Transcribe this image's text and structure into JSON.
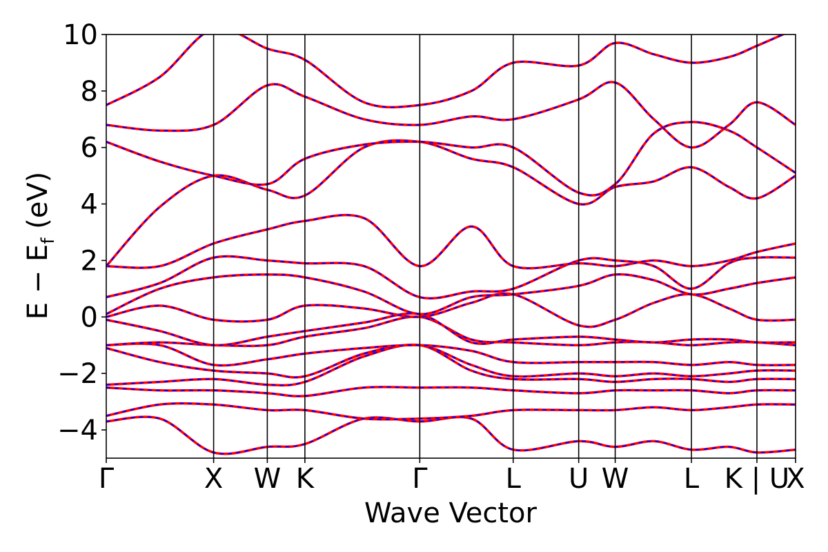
{
  "chart_data": {
    "type": "line",
    "title": "",
    "xlabel": "Wave Vector",
    "ylabel_main": "E − E",
    "ylabel_sub": "f",
    "ylabel_unit": " (eV)",
    "ylim": [
      -5,
      10
    ],
    "yticks": [
      -4,
      -2,
      0,
      2,
      4,
      6,
      8,
      10
    ],
    "ytick_labels": [
      "−4",
      "−2",
      "0",
      "2",
      "4",
      "6",
      "8",
      "10"
    ],
    "xlim": [
      0,
      6.42
    ],
    "kpoints": [
      {
        "label": "Γ",
        "x": 0.0
      },
      {
        "label": "X",
        "x": 1.0
      },
      {
        "label": "W",
        "x": 1.5
      },
      {
        "label": "K",
        "x": 1.85
      },
      {
        "label": "Γ",
        "x": 2.92
      },
      {
        "label": "L",
        "x": 3.79
      },
      {
        "label": "U",
        "x": 4.4
      },
      {
        "label": "W",
        "x": 4.74
      },
      {
        "label": "L",
        "x": 5.45
      },
      {
        "label": "K | U",
        "x": 6.06
      },
      {
        "label": "X",
        "x": 6.42
      }
    ],
    "grid": false,
    "legend": "none",
    "colors": {
      "series_a": "#ff0000",
      "series_b": "#0000ff"
    },
    "line_styles": {
      "series_a": "solid",
      "series_b": "dashed"
    },
    "bands": [
      {
        "x": [
          0,
          0.5,
          1.0,
          1.5,
          1.85,
          2.4,
          2.92,
          3.4,
          3.79,
          4.4,
          4.74,
          5.1,
          5.45,
          5.8,
          6.06,
          6.42
        ],
        "y": [
          -3.7,
          -3.6,
          -4.8,
          -4.6,
          -4.5,
          -3.6,
          -3.7,
          -3.6,
          -4.7,
          -4.4,
          -4.6,
          -4.4,
          -4.7,
          -4.6,
          -4.8,
          -4.7
        ]
      },
      {
        "x": [
          0,
          0.5,
          1.0,
          1.5,
          1.85,
          2.4,
          2.92,
          3.4,
          3.79,
          4.4,
          4.74,
          5.1,
          5.45,
          5.8,
          6.06,
          6.42
        ],
        "y": [
          -3.5,
          -3.1,
          -3.1,
          -3.3,
          -3.3,
          -3.6,
          -3.6,
          -3.5,
          -3.3,
          -3.3,
          -3.3,
          -3.2,
          -3.3,
          -3.2,
          -3.1,
          -3.1
        ]
      },
      {
        "x": [
          0,
          0.5,
          1.0,
          1.5,
          1.85,
          2.4,
          2.92,
          3.4,
          3.79,
          4.4,
          4.74,
          5.1,
          5.45,
          5.8,
          6.06,
          6.42
        ],
        "y": [
          -2.5,
          -2.6,
          -2.6,
          -2.7,
          -2.8,
          -2.5,
          -2.5,
          -2.5,
          -2.6,
          -2.7,
          -2.6,
          -2.6,
          -2.6,
          -2.7,
          -2.6,
          -2.6
        ]
      },
      {
        "x": [
          0,
          0.5,
          1.0,
          1.5,
          1.85,
          2.4,
          2.92,
          3.4,
          3.79,
          4.4,
          4.74,
          5.1,
          5.45,
          5.8,
          6.06,
          6.42
        ],
        "y": [
          -2.4,
          -2.3,
          -2.2,
          -2.4,
          -2.3,
          -1.4,
          -1.0,
          -1.9,
          -2.2,
          -2.2,
          -2.3,
          -2.2,
          -2.2,
          -2.3,
          -2.2,
          -2.2
        ]
      },
      {
        "x": [
          0,
          0.5,
          1.0,
          1.5,
          1.85,
          2.4,
          2.92,
          3.4,
          3.79,
          4.4,
          4.74,
          5.1,
          5.45,
          5.8,
          6.06,
          6.42
        ],
        "y": [
          -1.1,
          -1.6,
          -1.9,
          -2.0,
          -2.1,
          -1.3,
          -1.0,
          -1.7,
          -2.1,
          -2.0,
          -2.1,
          -2.0,
          -2.1,
          -2.0,
          -1.9,
          -1.9
        ]
      },
      {
        "x": [
          0,
          0.5,
          1.0,
          1.5,
          1.85,
          2.4,
          2.92,
          3.4,
          3.79,
          4.4,
          4.74,
          5.1,
          5.45,
          5.8,
          6.06,
          6.42
        ],
        "y": [
          -1.0,
          -1.0,
          -1.7,
          -1.5,
          -1.3,
          -1.1,
          -1.0,
          -1.2,
          -1.6,
          -1.6,
          -1.6,
          -1.6,
          -1.7,
          -1.6,
          -1.7,
          -1.7
        ]
      },
      {
        "x": [
          0,
          0.5,
          1.0,
          1.5,
          1.85,
          2.4,
          2.92,
          3.4,
          3.79,
          4.4,
          4.74,
          5.1,
          5.45,
          5.8,
          6.06,
          6.42
        ],
        "y": [
          -1.0,
          -0.9,
          -1.0,
          -1.0,
          -0.7,
          -0.4,
          0.0,
          -0.8,
          -0.9,
          -1.0,
          -0.9,
          -0.9,
          -1.0,
          -0.9,
          -0.9,
          -1.0
        ]
      },
      {
        "x": [
          0,
          0.5,
          1.0,
          1.5,
          1.85,
          2.4,
          2.92,
          3.4,
          3.79,
          4.4,
          4.74,
          5.1,
          5.45,
          5.8,
          6.06,
          6.42
        ],
        "y": [
          -0.1,
          -0.5,
          -1.0,
          -0.7,
          -0.5,
          -0.2,
          0.1,
          -0.9,
          -0.8,
          -0.7,
          -0.8,
          -0.9,
          -0.8,
          -0.8,
          -0.9,
          -0.9
        ]
      },
      {
        "x": [
          0,
          0.5,
          1.0,
          1.5,
          1.85,
          2.4,
          2.92,
          3.4,
          3.79,
          4.4,
          4.74,
          5.1,
          5.45,
          5.8,
          6.06,
          6.42
        ],
        "y": [
          0.0,
          0.4,
          -0.1,
          -0.1,
          0.4,
          0.3,
          0.0,
          0.5,
          0.8,
          -0.3,
          -0.1,
          0.5,
          0.8,
          0.3,
          -0.1,
          -0.1
        ]
      },
      {
        "x": [
          0,
          0.5,
          1.0,
          1.5,
          1.85,
          2.4,
          2.92,
          3.4,
          3.79,
          4.4,
          4.74,
          5.1,
          5.45,
          5.8,
          6.06,
          6.42
        ],
        "y": [
          0.1,
          1.0,
          1.4,
          1.5,
          1.4,
          0.9,
          0.1,
          0.7,
          0.8,
          1.1,
          1.5,
          1.3,
          0.8,
          1.0,
          1.2,
          1.4
        ]
      },
      {
        "x": [
          0,
          0.5,
          1.0,
          1.5,
          1.85,
          2.4,
          2.92,
          3.4,
          3.79,
          4.4,
          4.74,
          5.1,
          5.45,
          5.8,
          6.06,
          6.42
        ],
        "y": [
          0.7,
          1.2,
          2.1,
          2.0,
          1.9,
          1.8,
          0.7,
          0.9,
          1.0,
          2.0,
          2.0,
          1.8,
          1.0,
          1.9,
          2.1,
          2.1
        ]
      },
      {
        "x": [
          0,
          0.5,
          1.0,
          1.5,
          1.85,
          2.4,
          2.92,
          3.4,
          3.79,
          4.4,
          4.74,
          5.1,
          5.45,
          5.8,
          6.06,
          6.42
        ],
        "y": [
          1.8,
          1.8,
          2.6,
          3.1,
          3.4,
          3.5,
          1.8,
          3.2,
          1.8,
          1.9,
          1.8,
          2.0,
          1.8,
          2.0,
          2.3,
          2.6
        ]
      },
      {
        "x": [
          0,
          0.5,
          1.0,
          1.5,
          1.85,
          2.4,
          2.92,
          3.4,
          3.79,
          4.4,
          4.74,
          5.1,
          5.45,
          5.8,
          6.06,
          6.42
        ],
        "y": [
          1.8,
          3.9,
          5.0,
          4.5,
          4.3,
          6.0,
          6.2,
          5.6,
          5.3,
          4.0,
          4.6,
          4.8,
          5.3,
          4.6,
          4.2,
          5.0
        ]
      },
      {
        "x": [
          0,
          0.5,
          1.0,
          1.5,
          1.85,
          2.4,
          2.92,
          3.4,
          3.79,
          4.4,
          4.74,
          5.1,
          5.45,
          5.8,
          6.06,
          6.42
        ],
        "y": [
          6.2,
          5.5,
          5.0,
          4.7,
          5.6,
          6.1,
          6.2,
          6.0,
          6.0,
          4.4,
          4.7,
          6.5,
          6.9,
          6.6,
          6.0,
          5.1
        ]
      },
      {
        "x": [
          0,
          0.5,
          1.0,
          1.5,
          1.85,
          2.4,
          2.92,
          3.4,
          3.79,
          4.4,
          4.74,
          5.1,
          5.45,
          5.8,
          6.06,
          6.42
        ],
        "y": [
          6.8,
          6.6,
          6.8,
          8.2,
          7.8,
          7.0,
          6.8,
          7.1,
          7.0,
          7.7,
          8.3,
          7.0,
          6.0,
          6.8,
          7.6,
          6.8
        ]
      },
      {
        "x": [
          0,
          0.5,
          1.0,
          1.5,
          1.85,
          2.4,
          2.92,
          3.4,
          3.79,
          4.4,
          4.74,
          5.1,
          5.45,
          5.8,
          6.06,
          6.42
        ],
        "y": [
          7.5,
          8.5,
          10.2,
          9.5,
          9.1,
          7.6,
          7.5,
          8.0,
          9.0,
          8.9,
          9.7,
          9.3,
          9.0,
          9.2,
          9.6,
          10.2
        ]
      }
    ]
  }
}
